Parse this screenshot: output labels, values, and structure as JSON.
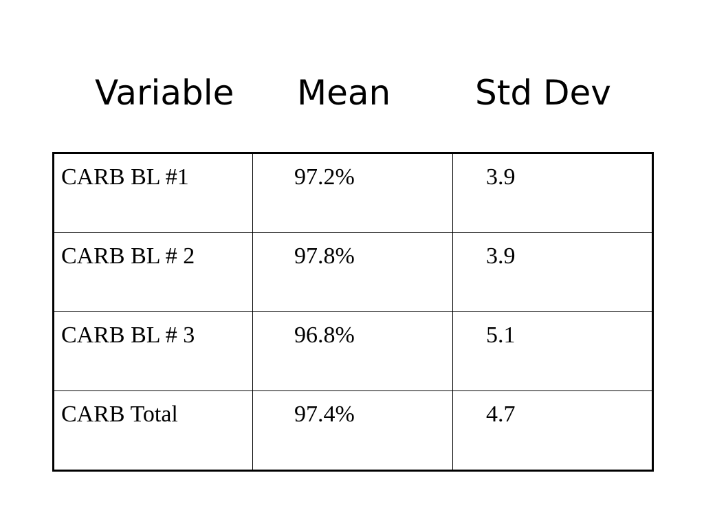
{
  "title": {
    "variable": "Variable",
    "mean": "Mean",
    "std_dev": "Std Dev"
  },
  "rows": [
    {
      "variable": "CARB BL #1",
      "mean": "97.2%",
      "std_dev": "3.9"
    },
    {
      "variable": "CARB BL # 2",
      "mean": "97.8%",
      "std_dev": "3.9"
    },
    {
      "variable": "CARB BL # 3",
      "mean": "96.8%",
      "std_dev": "5.1"
    },
    {
      "variable": "CARB Total",
      "mean": "97.4%",
      "std_dev": "4.7"
    }
  ]
}
